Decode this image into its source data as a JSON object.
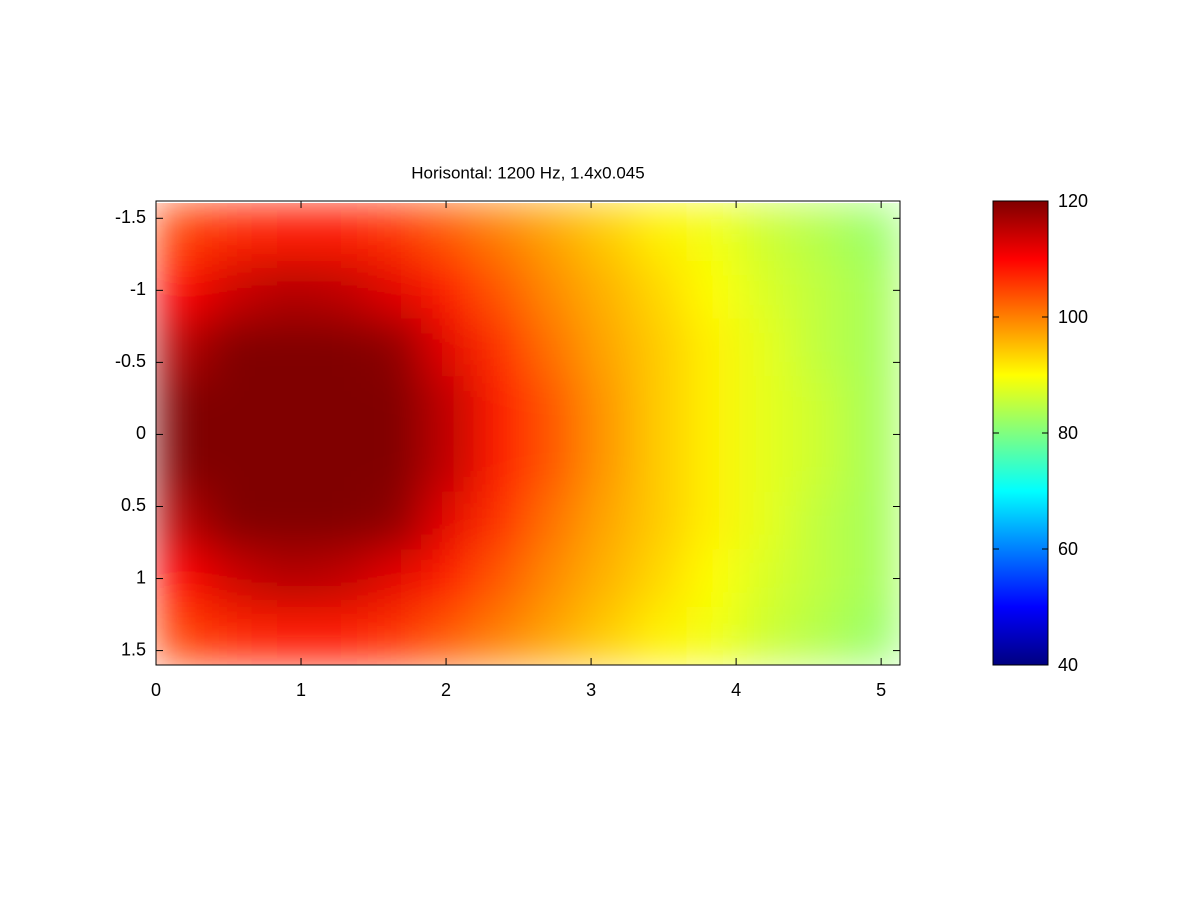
{
  "chart_data": {
    "type": "heatmap",
    "title": "Horisontal: 1200 Hz, 1.4x0.045",
    "x": [
      0.18,
      0.55,
      0.92,
      1.28,
      1.65,
      2.02,
      2.38,
      2.75,
      3.11,
      3.48,
      3.85,
      4.21,
      4.58,
      4.95
    ],
    "y": [
      -1.4,
      -1.0,
      -0.6,
      -0.2,
      0.2,
      0.6,
      1.0,
      1.4
    ],
    "z": [
      [
        105,
        107,
        108,
        108,
        106,
        103,
        100,
        97,
        94,
        91,
        89,
        86,
        84,
        82
      ],
      [
        110,
        114,
        116,
        115,
        112,
        108,
        103,
        99,
        96,
        93,
        90,
        87,
        85,
        83
      ],
      [
        116,
        120,
        120,
        120,
        119,
        112,
        106,
        101,
        97,
        94,
        91,
        88,
        85,
        83
      ],
      [
        120,
        120,
        120,
        120,
        120,
        115,
        108,
        103,
        98,
        94,
        91,
        88,
        86,
        83
      ],
      [
        120,
        120,
        120,
        120,
        120,
        115,
        108,
        103,
        98,
        94,
        91,
        88,
        86,
        83
      ],
      [
        116,
        120,
        120,
        120,
        119,
        112,
        106,
        101,
        97,
        94,
        91,
        88,
        85,
        83
      ],
      [
        110,
        114,
        116,
        115,
        112,
        108,
        103,
        99,
        96,
        93,
        90,
        87,
        85,
        83
      ],
      [
        105,
        107,
        108,
        108,
        106,
        103,
        100,
        97,
        94,
        91,
        89,
        86,
        84,
        82
      ]
    ],
    "colormap": "jet",
    "clim": [
      40,
      120
    ],
    "colorbar_ticks": [
      40,
      60,
      80,
      100,
      120
    ],
    "xlim": [
      0,
      5.13
    ],
    "ylim": [
      -1.62,
      1.6
    ],
    "y_reversed": true,
    "xticks": [
      0,
      1,
      2,
      3,
      4,
      5
    ],
    "yticks": [
      -1.5,
      -1,
      -0.5,
      0,
      0.5,
      1,
      1.5
    ]
  }
}
